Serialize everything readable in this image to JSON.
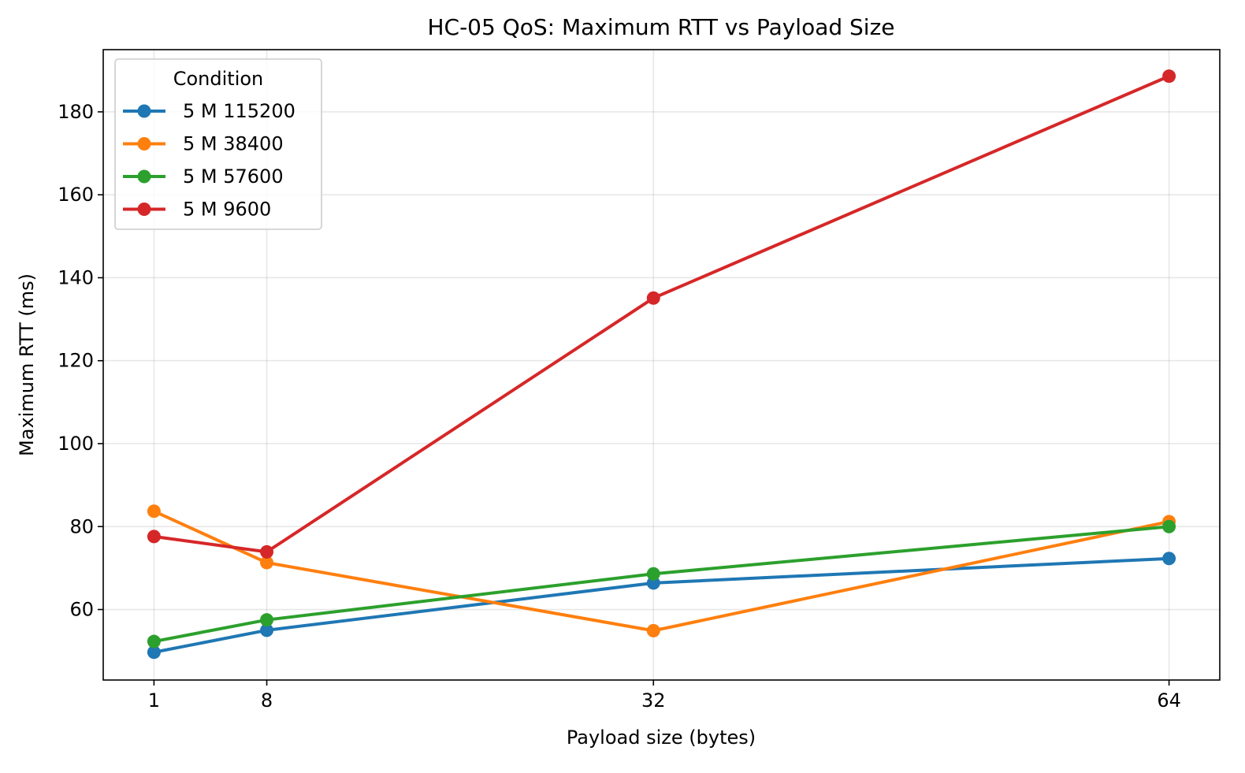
{
  "chart_data": {
    "type": "line",
    "title": "HC-05 QoS: Maximum RTT vs Payload Size",
    "xlabel": "Payload size (bytes)",
    "ylabel": "Maximum RTT (ms)",
    "x": [
      1,
      8,
      32,
      64
    ],
    "x_ticks": [
      "1",
      "8",
      "32",
      "64"
    ],
    "xlim": [
      -2.15,
      67.15
    ],
    "ylim": [
      43,
      195
    ],
    "y_ticks": [
      60,
      80,
      100,
      120,
      140,
      160,
      180
    ],
    "grid": true,
    "legend": {
      "title": "Condition",
      "placement": "upper-left"
    },
    "series": [
      {
        "name": "5 M 115200",
        "color": "#1f77b4",
        "values": [
          49.7,
          55.0,
          66.4,
          72.3
        ]
      },
      {
        "name": "5 M 38400",
        "color": "#ff7f0e",
        "values": [
          83.7,
          71.3,
          54.9,
          81.2
        ]
      },
      {
        "name": "5 M 57600",
        "color": "#2ca02c",
        "values": [
          52.3,
          57.5,
          68.6,
          80.0
        ]
      },
      {
        "name": "5 M 9600",
        "color": "#d62728",
        "values": [
          77.6,
          73.9,
          135.1,
          188.6
        ]
      }
    ]
  }
}
